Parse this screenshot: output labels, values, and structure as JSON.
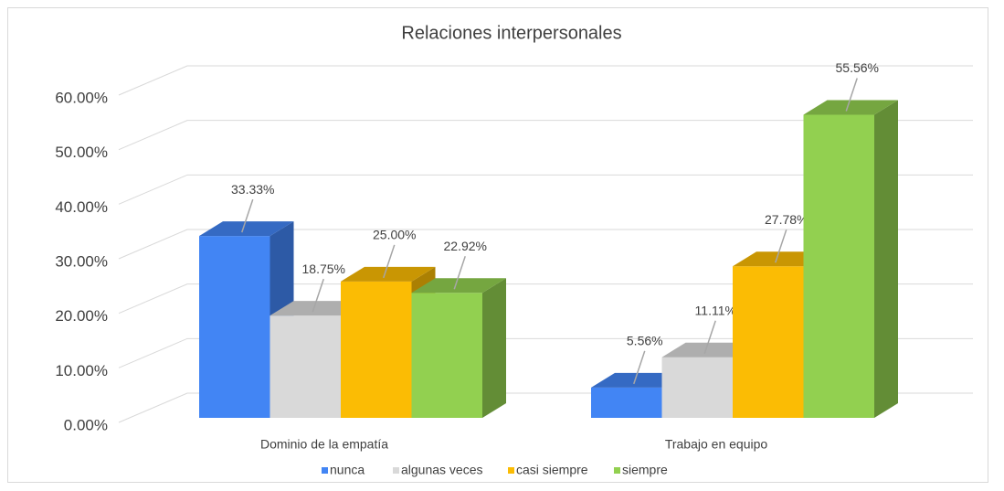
{
  "chart_data": {
    "type": "bar3d",
    "title": "Relaciones interpersonales",
    "categories": [
      "Dominio de la empatía",
      "Trabajo en equipo"
    ],
    "series": [
      {
        "name": "nunca",
        "color": "#4285f4",
        "values": [
          33.33,
          5.56
        ],
        "value_labels": [
          "33.33%",
          "5.56%"
        ]
      },
      {
        "name": "algunas veces",
        "color": "#d9d9d9",
        "values": [
          18.75,
          11.11
        ],
        "value_labels": [
          "18.75%",
          "11.11%"
        ]
      },
      {
        "name": "casi siempre",
        "color": "#fbbc04",
        "values": [
          25.0,
          27.78
        ],
        "value_labels": [
          "25.00%",
          "27.78%"
        ]
      },
      {
        "name": "siempre",
        "color": "#92d050",
        "values": [
          22.92,
          55.56
        ],
        "value_labels": [
          "22.92%",
          "55.56%"
        ]
      }
    ],
    "ylim": [
      0,
      60
    ],
    "yticks": [
      {
        "value": 0,
        "label": "0.00%"
      },
      {
        "value": 10,
        "label": "10.00%"
      },
      {
        "value": 20,
        "label": "20.00%"
      },
      {
        "value": 30,
        "label": "30.00%"
      },
      {
        "value": 40,
        "label": "40.00%"
      },
      {
        "value": 50,
        "label": "50.00%"
      },
      {
        "value": 60,
        "label": "60.00%"
      }
    ],
    "grid": true,
    "legend": "bottom"
  }
}
